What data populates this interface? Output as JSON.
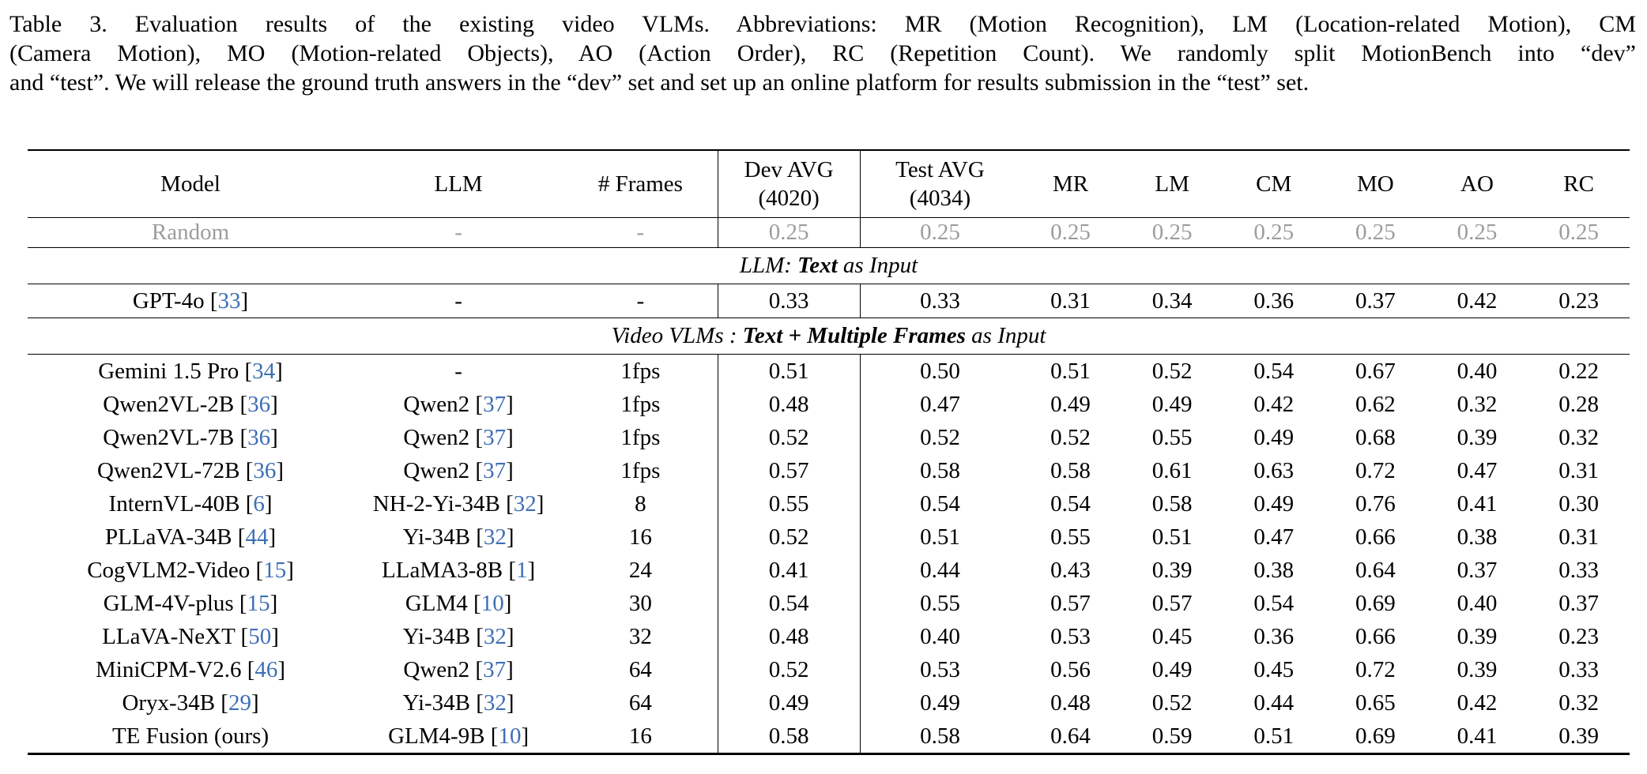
{
  "caption": {
    "line1": "Table 3.  Evaluation results of the existing video VLMs.  Abbreviations: MR (Motion Recognition), LM (Location-related Motion), CM",
    "line2": "(Camera Motion), MO (Motion-related Objects), AO (Action Order), RC (Repetition Count). We randomly split MotionBench into “dev”",
    "line3": "and “test”. We will release the ground truth answers in the “dev” set and set up an online platform for results submission in the “test” set."
  },
  "colors": {
    "citation_blue": "#3d6eb5",
    "baseline_gray": "#9c9c9c"
  },
  "table": {
    "header": {
      "model": "Model",
      "llm": "LLM",
      "frames": "# Frames",
      "dev_line1": "Dev AVG",
      "dev_line2": "(4020)",
      "test_line1": "Test AVG",
      "test_line2": "(4034)",
      "metrics": [
        "MR",
        "LM",
        "CM",
        "MO",
        "AO",
        "RC"
      ]
    },
    "value_columns": [
      "Dev AVG (4020)",
      "Test AVG (4034)",
      "MR",
      "LM",
      "CM",
      "MO",
      "AO",
      "RC"
    ],
    "rows": [
      {
        "kind": "baseline",
        "model_name": "Random",
        "model_cite": null,
        "llm_name": "-",
        "llm_cite": null,
        "frames": "-",
        "values": [
          "0.25",
          "0.25",
          "0.25",
          "0.25",
          "0.25",
          "0.25",
          "0.25",
          "0.25"
        ],
        "bold": []
      },
      {
        "kind": "section",
        "segments": [
          {
            "text": "LLM: ",
            "style": "i"
          },
          {
            "text": "Text",
            "style": "bi"
          },
          {
            "text": " as Input",
            "style": "i"
          }
        ]
      },
      {
        "kind": "model",
        "model_name": "GPT-4o",
        "model_cite": "33",
        "llm_name": "-",
        "llm_cite": null,
        "frames": "-",
        "values": [
          "0.33",
          "0.33",
          "0.31",
          "0.34",
          "0.36",
          "0.37",
          "0.42",
          "0.23"
        ],
        "bold": []
      },
      {
        "kind": "section",
        "segments": [
          {
            "text": "Video VLMs : ",
            "style": "i"
          },
          {
            "text": "Text + Multiple Frames",
            "style": "bi"
          },
          {
            "text": " as Input",
            "style": "i"
          }
        ]
      },
      {
        "kind": "model",
        "model_name": "Gemini 1.5 Pro",
        "model_cite": "34",
        "llm_name": "-",
        "llm_cite": null,
        "frames": "1fps",
        "values": [
          "0.51",
          "0.50",
          "0.51",
          "0.52",
          "0.54",
          "0.67",
          "0.40",
          "0.22"
        ],
        "bold": []
      },
      {
        "kind": "model",
        "model_name": "Qwen2VL-2B",
        "model_cite": "36",
        "llm_name": "Qwen2",
        "llm_cite": "37",
        "frames": "1fps",
        "values": [
          "0.48",
          "0.47",
          "0.49",
          "0.49",
          "0.42",
          "0.62",
          "0.32",
          "0.28"
        ],
        "bold": []
      },
      {
        "kind": "model",
        "model_name": "Qwen2VL-7B",
        "model_cite": "36",
        "llm_name": "Qwen2",
        "llm_cite": "37",
        "frames": "1fps",
        "values": [
          "0.52",
          "0.52",
          "0.52",
          "0.55",
          "0.49",
          "0.68",
          "0.39",
          "0.32"
        ],
        "bold": []
      },
      {
        "kind": "model",
        "model_name": "Qwen2VL-72B",
        "model_cite": "36",
        "llm_name": "Qwen2",
        "llm_cite": "37",
        "frames": "1fps",
        "values": [
          "0.57",
          "0.58",
          "0.58",
          "0.61",
          "0.63",
          "0.72",
          "0.47",
          "0.31"
        ],
        "bold": [
          1,
          3,
          4,
          6
        ]
      },
      {
        "kind": "model",
        "model_name": "InternVL-40B",
        "model_cite": "6",
        "llm_name": "NH-2-Yi-34B",
        "llm_cite": "32",
        "frames": "8",
        "values": [
          "0.55",
          "0.54",
          "0.54",
          "0.58",
          "0.49",
          "0.76",
          "0.41",
          "0.30"
        ],
        "bold": [
          5
        ]
      },
      {
        "kind": "model",
        "model_name": "PLLaVA-34B",
        "model_cite": "44",
        "llm_name": "Yi-34B",
        "llm_cite": "32",
        "frames": "16",
        "values": [
          "0.52",
          "0.51",
          "0.55",
          "0.51",
          "0.47",
          "0.66",
          "0.38",
          "0.31"
        ],
        "bold": []
      },
      {
        "kind": "model",
        "model_name": "CogVLM2-Video",
        "model_cite": "15",
        "llm_name": "LLaMA3-8B",
        "llm_cite": "1",
        "frames": "24",
        "values": [
          "0.41",
          "0.44",
          "0.43",
          "0.39",
          "0.38",
          "0.64",
          "0.37",
          "0.33"
        ],
        "bold": []
      },
      {
        "kind": "model",
        "model_name": "GLM-4V-plus",
        "model_cite": "15",
        "llm_name": "GLM4",
        "llm_cite": "10",
        "frames": "30",
        "values": [
          "0.54",
          "0.55",
          "0.57",
          "0.57",
          "0.54",
          "0.69",
          "0.40",
          "0.37"
        ],
        "bold": []
      },
      {
        "kind": "model",
        "model_name": "LLaVA-NeXT",
        "model_cite": "50",
        "llm_name": "Yi-34B",
        "llm_cite": "32",
        "frames": "32",
        "values": [
          "0.48",
          "0.40",
          "0.53",
          "0.45",
          "0.36",
          "0.66",
          "0.39",
          "0.23"
        ],
        "bold": []
      },
      {
        "kind": "model",
        "model_name": "MiniCPM-V2.6",
        "model_cite": "46",
        "llm_name": "Qwen2",
        "llm_cite": "37",
        "frames": "64",
        "values": [
          "0.52",
          "0.53",
          "0.56",
          "0.49",
          "0.45",
          "0.72",
          "0.39",
          "0.33"
        ],
        "bold": []
      },
      {
        "kind": "model",
        "model_name": "Oryx-34B",
        "model_cite": "29",
        "llm_name": "Yi-34B",
        "llm_cite": "32",
        "frames": "64",
        "values": [
          "0.49",
          "0.49",
          "0.48",
          "0.52",
          "0.44",
          "0.65",
          "0.42",
          "0.32"
        ],
        "bold": []
      },
      {
        "kind": "model",
        "model_name": "TE Fusion (ours)",
        "model_cite": null,
        "llm_name": "GLM4-9B",
        "llm_cite": "10",
        "frames": "16",
        "values": [
          "0.58",
          "0.58",
          "0.64",
          "0.59",
          "0.51",
          "0.69",
          "0.41",
          "0.39"
        ],
        "bold": [
          0,
          1,
          2,
          7
        ]
      }
    ]
  }
}
